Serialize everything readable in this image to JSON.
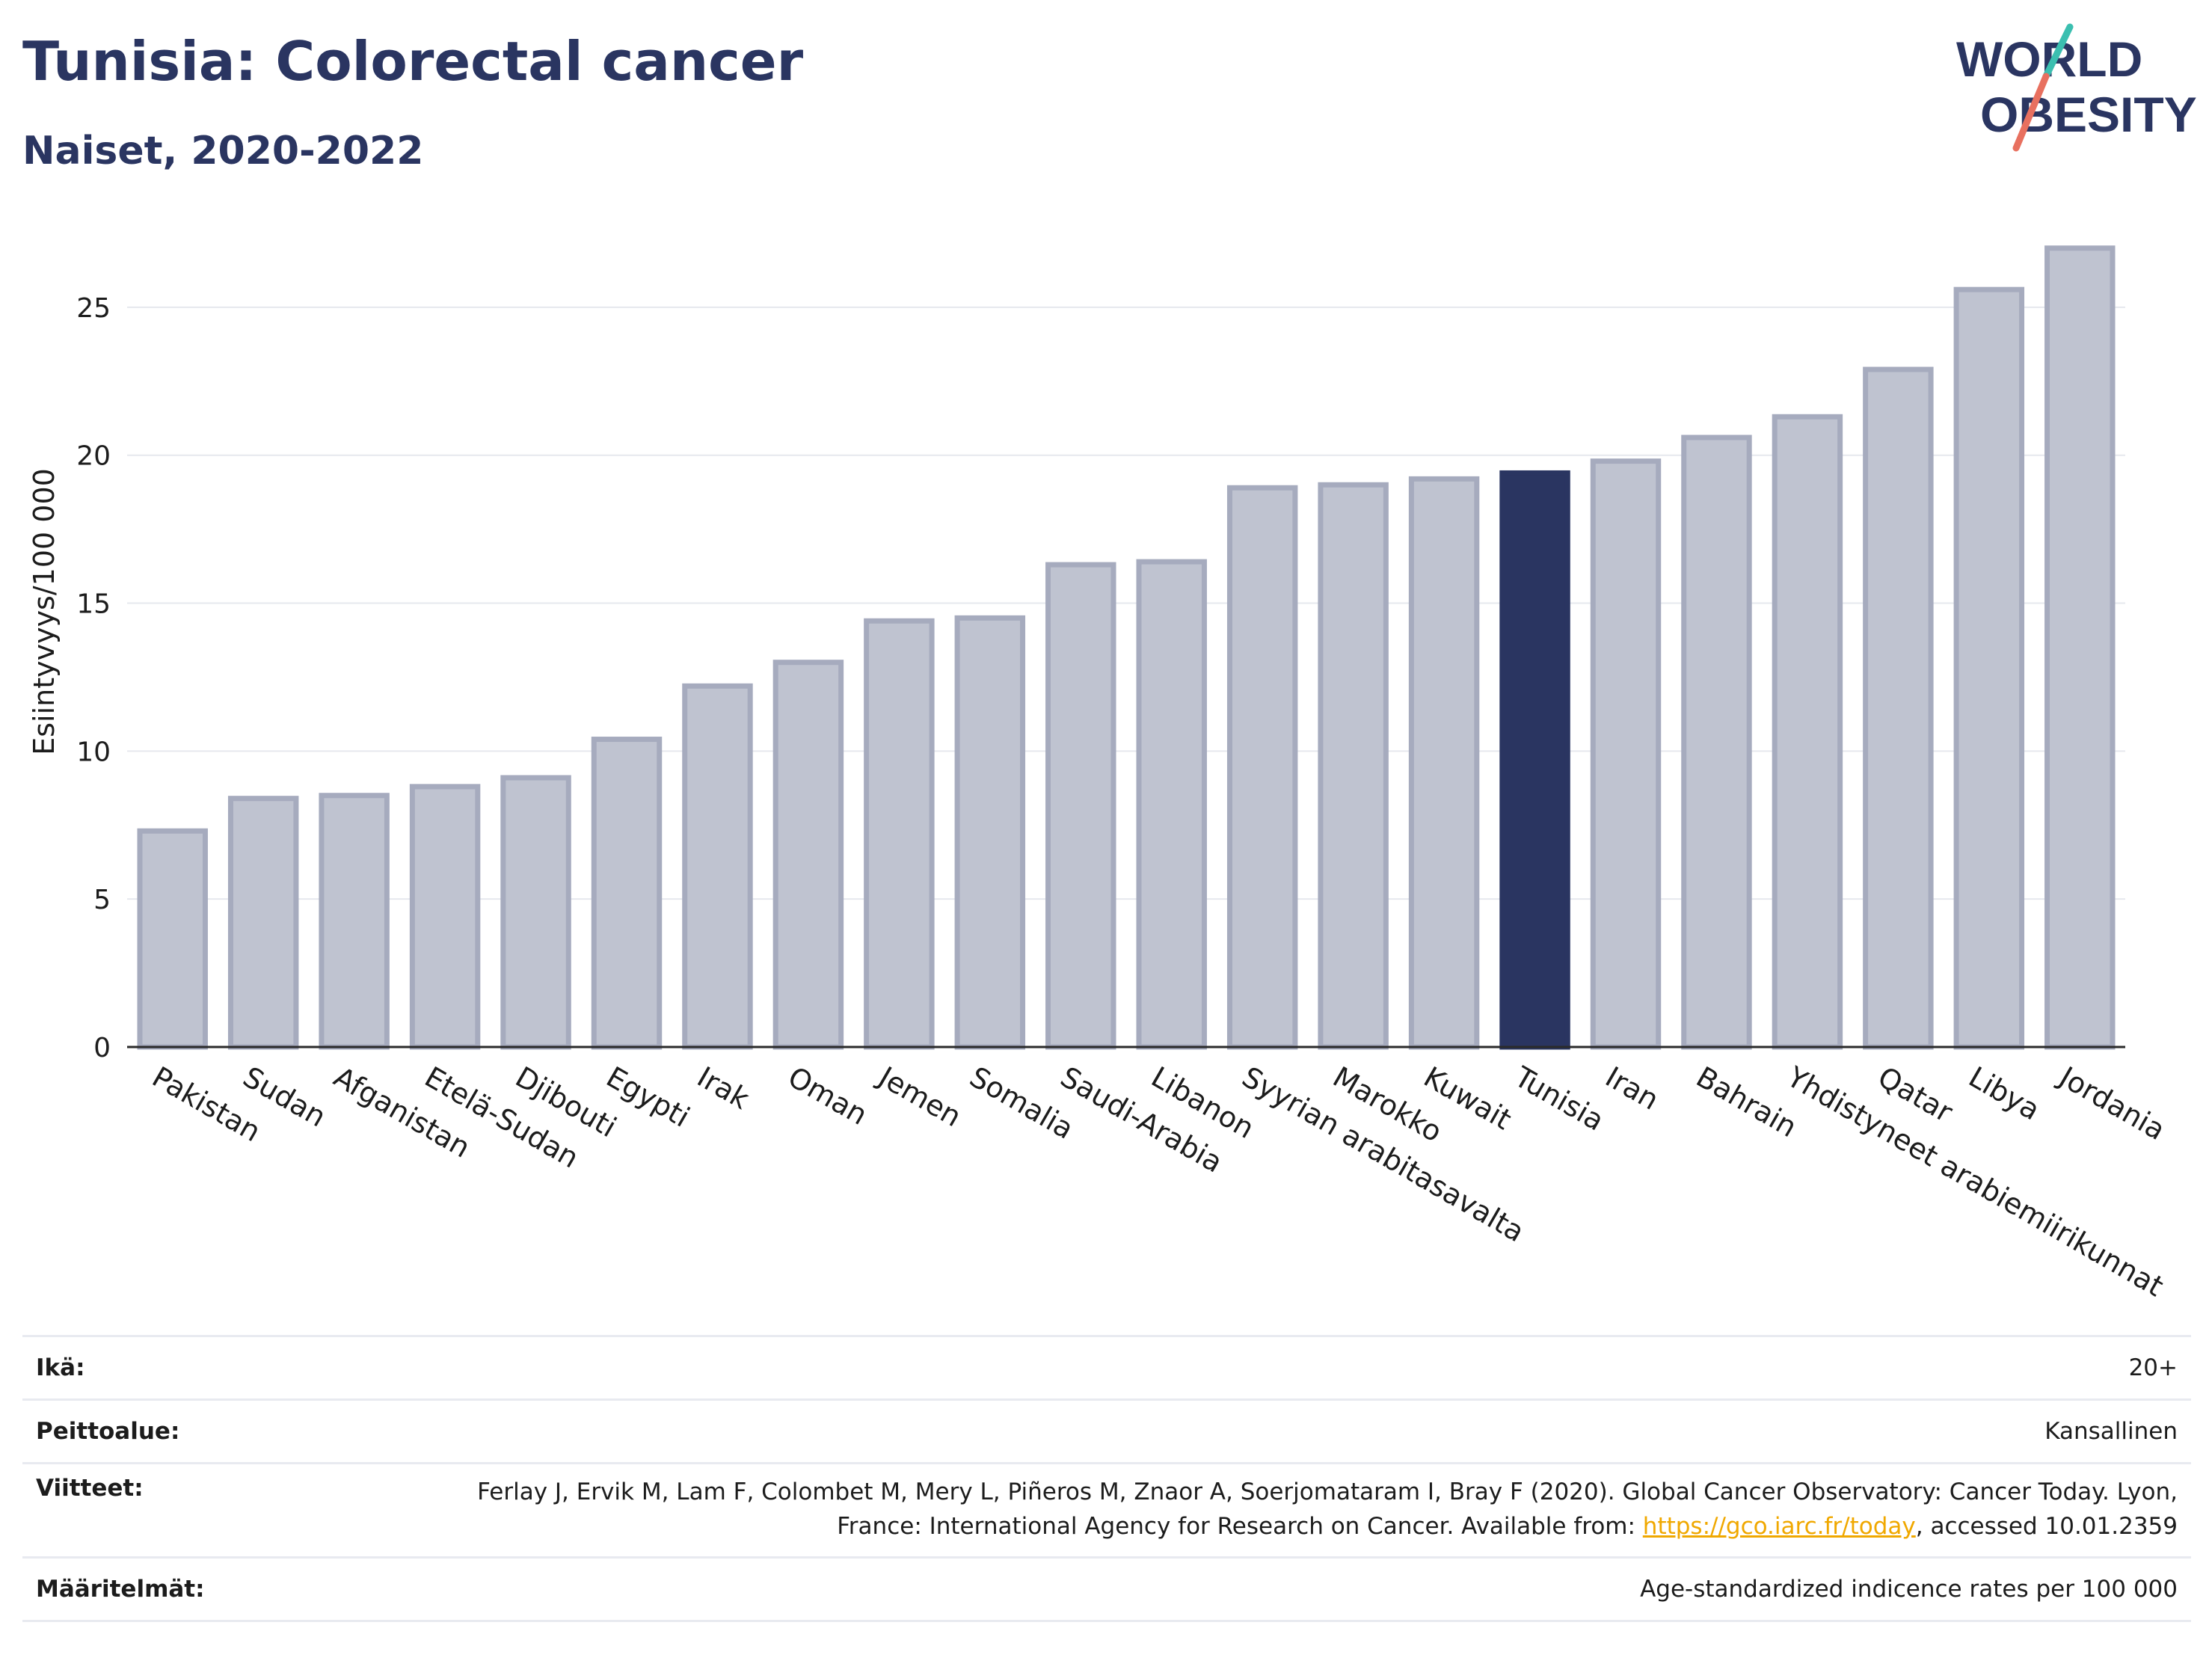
{
  "header": {
    "title": "Tunisia: Colorectal cancer",
    "subtitle": "Naiset, 2020-2022"
  },
  "logo": {
    "line1": "WORLD",
    "line2": "OBESITY"
  },
  "colors": {
    "highlight": "#2a3561",
    "bar": "#bfc3d0",
    "bar_border": "#a6abbe",
    "grid": "#e6e8ee",
    "link": "#f0a800"
  },
  "chart_data": {
    "type": "bar",
    "categories": [
      "Pakistan",
      "Sudan",
      "Afganistan",
      "Etelä-Sudan",
      "Djibouti",
      "Egypti",
      "Irak",
      "Oman",
      "Jemen",
      "Somalia",
      "Saudi-Arabia",
      "Libanon",
      "Syyrian arabitasavalta",
      "Marokko",
      "Kuwait",
      "Tunisia",
      "Iran",
      "Bahrain",
      "Yhdistyneet arabiemiirikunnat",
      "Qatar",
      "Libya",
      "Jordania"
    ],
    "values": [
      7.3,
      8.4,
      8.5,
      8.8,
      9.1,
      10.4,
      12.2,
      13.0,
      14.4,
      14.5,
      16.3,
      16.4,
      18.9,
      19.0,
      19.2,
      19.4,
      19.8,
      20.6,
      21.3,
      22.9,
      25.6,
      27.0
    ],
    "highlight": "Tunisia",
    "ylabel": "Esiintyvyys/100 000",
    "ylim": [
      0,
      27.5
    ],
    "yticks": [
      0,
      5,
      10,
      15,
      20,
      25
    ],
    "grid": true
  },
  "meta": [
    {
      "label": "Ikä:",
      "value": "20+"
    },
    {
      "label": "Peittoalue:",
      "value": "Kansallinen"
    },
    {
      "label": "Viitteet:",
      "value_before": "Ferlay J, Ervik M, Lam F, Colombet M, Mery L, Piñeros M, Znaor A, Soerjomataram I, Bray F (2020). Global Cancer Observatory: Cancer Today. Lyon, France: International Agency for Research on Cancer. Available from: ",
      "link": "https://gco.iarc.fr/today",
      "value_after": ", accessed 10.01.2359"
    },
    {
      "label": "Määritelmät:",
      "value": "Age-standardized indicence rates per 100 000"
    }
  ]
}
